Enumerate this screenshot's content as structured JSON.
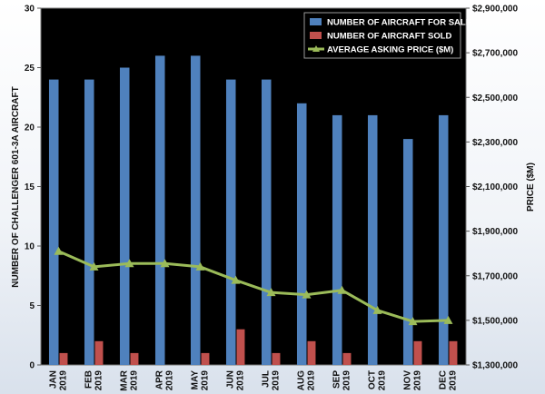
{
  "chart_data": {
    "type": "bar",
    "categories": [
      "JAN 2019",
      "FEB 2019",
      "MAR 2019",
      "APR 2019",
      "MAY 2019",
      "JUN 2019",
      "JUL 2019",
      "AUG 2019",
      "SEP 2019",
      "OCT 2019",
      "NOV 2019",
      "DEC 2019"
    ],
    "category_lines": [
      [
        "JAN",
        "2019"
      ],
      [
        "FEB",
        "2019"
      ],
      [
        "MAR",
        "2019"
      ],
      [
        "APR",
        "2019"
      ],
      [
        "MAY",
        "2019"
      ],
      [
        "JUN",
        "2019"
      ],
      [
        "JUL",
        "2019"
      ],
      [
        "AUG",
        "2019"
      ],
      [
        "SEP",
        "2019"
      ],
      [
        "OCT",
        "2019"
      ],
      [
        "NOV",
        "2019"
      ],
      [
        "DEC",
        "2019"
      ]
    ],
    "series": [
      {
        "name": "NUMBER OF AIRCRAFT FOR SALE",
        "type": "bar",
        "axis": "left",
        "color": "#4f81bd",
        "values": [
          24,
          24,
          25,
          26,
          26,
          24,
          24,
          22,
          21,
          21,
          19,
          21
        ]
      },
      {
        "name": "NUMBER OF AIRCRAFT SOLD",
        "type": "bar",
        "axis": "left",
        "color": "#c0504d",
        "values": [
          1,
          2,
          1,
          0,
          1,
          3,
          1,
          2,
          1,
          0,
          2,
          2
        ]
      },
      {
        "name": "AVERAGE ASKING PRICE ($M)",
        "type": "line",
        "axis": "right",
        "color": "#9bbb59",
        "values": [
          1810000,
          1740000,
          1755000,
          1755000,
          1740000,
          1680000,
          1625000,
          1615000,
          1635000,
          1545000,
          1495000,
          1500000
        ]
      }
    ],
    "ylabel": "NUMBER OF CHALLENGER 601-3A  AIRCRAFT",
    "y2label": "PRICE ($M)",
    "ylim": [
      0,
      30
    ],
    "y2lim": [
      1300000,
      2900000
    ],
    "yticks": [
      0,
      5,
      10,
      15,
      20,
      25,
      30
    ],
    "y2ticks": [
      "$1,300,000",
      "$1,500,000",
      "$1,700,000",
      "$1,900,000",
      "$2,100,000",
      "$2,300,000",
      "$2,500,000",
      "$2,700,000",
      "$2,900,000"
    ],
    "legend_position": "top-right",
    "plot_background": "#000000",
    "grid": false
  }
}
